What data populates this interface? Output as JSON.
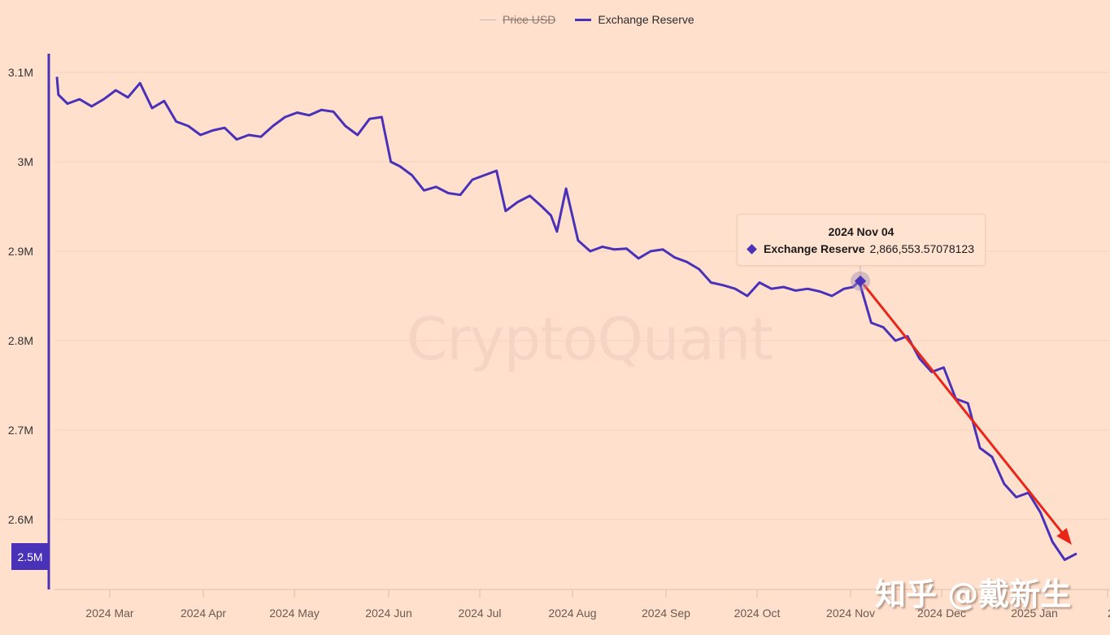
{
  "legend": {
    "items": [
      {
        "label": "Price USD",
        "color": "#c9b8ad",
        "disabled": true
      },
      {
        "label": "Exchange Reserve",
        "color": "#4a32b8",
        "disabled": false
      }
    ]
  },
  "watermark": "CryptoQuant",
  "author_watermark": "知乎 @戴新生",
  "tooltip": {
    "date": "2024 Nov 04",
    "series": "Exchange Reserve",
    "value": "2,866,553.57078123"
  },
  "yaxis_badge": "2.5M",
  "chart_data": {
    "type": "line",
    "title": "",
    "xlabel": "",
    "ylabel": "",
    "ylim": [
      2500000,
      3150000
    ],
    "grid": true,
    "legend_position": "top",
    "yticks": [
      "3.1M",
      "3M",
      "2.9M",
      "2.8M",
      "2.7M",
      "2.6M",
      "2.5M"
    ],
    "ytick_values": [
      3100000,
      3000000,
      2900000,
      2800000,
      2700000,
      2600000,
      2500000
    ],
    "xticks": [
      "2024 Mar",
      "2024 Apr",
      "2024 May",
      "2024 Jun",
      "2024 Jul",
      "2024 Aug",
      "2024 Sep",
      "2024 Oct",
      "2024 Nov",
      "2024 Dec",
      "2025 Jan",
      "2"
    ],
    "series": [
      {
        "name": "Exchange Reserve",
        "color": "#4a32b8",
        "x": [
          "2024-02-10",
          "2024-02-13",
          "2024-02-16",
          "2024-02-20",
          "2024-02-24",
          "2024-02-28",
          "2024-03-03",
          "2024-03-07",
          "2024-03-11",
          "2024-03-15",
          "2024-03-19",
          "2024-03-23",
          "2024-03-27",
          "2024-03-31",
          "2024-04-04",
          "2024-04-08",
          "2024-04-12",
          "2024-04-16",
          "2024-04-20",
          "2024-04-24",
          "2024-04-28",
          "2024-05-02",
          "2024-05-06",
          "2024-05-10",
          "2024-05-14",
          "2024-05-18",
          "2024-05-22",
          "2024-05-26",
          "2024-05-30",
          "2024-06-02",
          "2024-06-05",
          "2024-06-09",
          "2024-06-13",
          "2024-06-17",
          "2024-06-21",
          "2024-06-25",
          "2024-06-29",
          "2024-07-03",
          "2024-07-07",
          "2024-07-10",
          "2024-07-14",
          "2024-07-18",
          "2024-07-22",
          "2024-07-25",
          "2024-07-27",
          "2024-07-30",
          "2024-08-03",
          "2024-08-07",
          "2024-08-11",
          "2024-08-15",
          "2024-08-19",
          "2024-08-23",
          "2024-08-27",
          "2024-08-31",
          "2024-09-04",
          "2024-09-08",
          "2024-09-12",
          "2024-09-16",
          "2024-09-20",
          "2024-09-24",
          "2024-09-28",
          "2024-10-02",
          "2024-10-06",
          "2024-10-10",
          "2024-10-14",
          "2024-10-18",
          "2024-10-22",
          "2024-10-26",
          "2024-10-30",
          "2024-11-02",
          "2024-11-04",
          "2024-11-08",
          "2024-11-12",
          "2024-11-16",
          "2024-11-20",
          "2024-11-24",
          "2024-11-28",
          "2024-12-02",
          "2024-12-06",
          "2024-12-10",
          "2024-12-14",
          "2024-12-18",
          "2024-12-22",
          "2024-12-26",
          "2024-12-30",
          "2025-01-03",
          "2025-01-07",
          "2025-01-11",
          "2025-01-15"
        ],
        "values": [
          3095000,
          3075000,
          3065000,
          3070000,
          3062000,
          3070000,
          3080000,
          3072000,
          3088000,
          3060000,
          3068000,
          3045000,
          3040000,
          3030000,
          3035000,
          3038000,
          3025000,
          3030000,
          3028000,
          3040000,
          3050000,
          3055000,
          3052000,
          3058000,
          3056000,
          3040000,
          3030000,
          3048000,
          3050000,
          3000000,
          2995000,
          2985000,
          2968000,
          2972000,
          2965000,
          2963000,
          2980000,
          2985000,
          2990000,
          2945000,
          2955000,
          2962000,
          2950000,
          2940000,
          2922000,
          2970000,
          2912000,
          2900000,
          2905000,
          2902000,
          2903000,
          2892000,
          2900000,
          2902000,
          2893000,
          2888000,
          2880000,
          2865000,
          2862000,
          2858000,
          2850000,
          2865000,
          2858000,
          2860000,
          2856000,
          2858000,
          2855000,
          2850000,
          2858000,
          2860000,
          2866554,
          2820000,
          2815000,
          2800000,
          2805000,
          2780000,
          2765000,
          2770000,
          2735000,
          2730000,
          2680000,
          2670000,
          2640000,
          2625000,
          2630000,
          2608000,
          2575000,
          2555000,
          2562000
        ]
      }
    ],
    "annotation": {
      "type": "arrow",
      "color": "#e8261a",
      "from": "2024-11-04",
      "to": "2025-01-15",
      "description": "red downward trend arrow"
    }
  }
}
